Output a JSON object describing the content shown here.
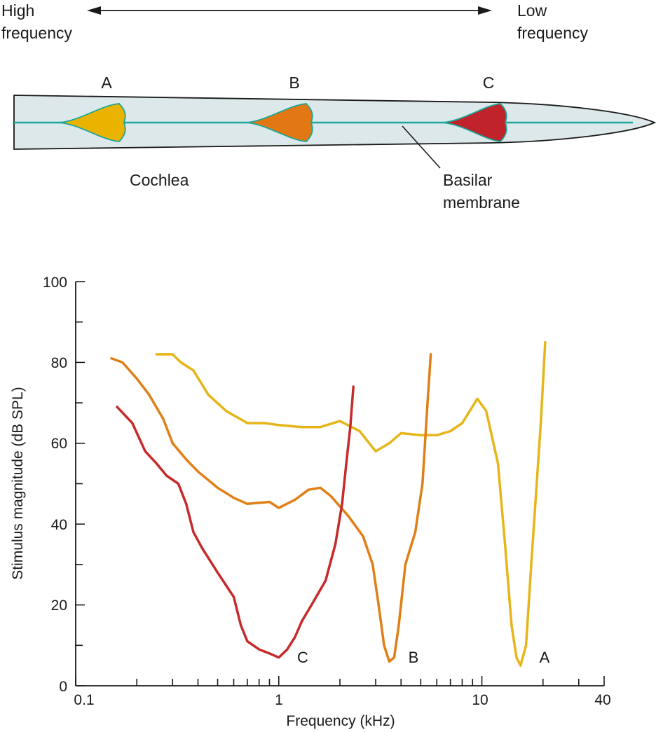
{
  "diagram": {
    "high_label_line1": "High",
    "high_label_line2": "frequency",
    "low_label_line1": "Low",
    "low_label_line2": "frequency",
    "cochlea_label": "Cochlea",
    "basilar_label_line1": "Basilar",
    "basilar_label_line2": "membrane",
    "colors": {
      "cochlea_fill": "#dce8ea",
      "membrane": "#1aa69a"
    },
    "bulges": [
      {
        "letter": "A",
        "color": "#e9b300"
      },
      {
        "letter": "B",
        "color": "#e27813"
      },
      {
        "letter": "C",
        "color": "#c0242a"
      }
    ]
  },
  "chart_data": {
    "type": "line",
    "xlabel": "Frequency (kHz)",
    "ylabel": "Stimulus magnitude (dB SPL)",
    "xscale": "log",
    "xlim": [
      0.1,
      40
    ],
    "ylim": [
      0,
      100
    ],
    "x_tick_labels": [
      "0.1",
      "1",
      "10",
      "40"
    ],
    "y_tick_labels": [
      "0",
      "20",
      "40",
      "60",
      "80",
      "100"
    ],
    "grid": false,
    "series": [
      {
        "name": "A",
        "color": "#e6b519",
        "points": [
          [
            0.25,
            82
          ],
          [
            0.3,
            82
          ],
          [
            0.33,
            80
          ],
          [
            0.38,
            78
          ],
          [
            0.45,
            72
          ],
          [
            0.55,
            68
          ],
          [
            0.7,
            65
          ],
          [
            0.85,
            65
          ],
          [
            1,
            64.5
          ],
          [
            1.3,
            64
          ],
          [
            1.6,
            64
          ],
          [
            2,
            65.5
          ],
          [
            2.5,
            63
          ],
          [
            3,
            58
          ],
          [
            3.5,
            60
          ],
          [
            4,
            62.5
          ],
          [
            5,
            62
          ],
          [
            6,
            62
          ],
          [
            7,
            63
          ],
          [
            8,
            65
          ],
          [
            9.5,
            71
          ],
          [
            10.5,
            68
          ],
          [
            12,
            55
          ],
          [
            13,
            35
          ],
          [
            14,
            15
          ],
          [
            14.8,
            7
          ],
          [
            15.5,
            5
          ],
          [
            16.5,
            10
          ],
          [
            17.5,
            30
          ],
          [
            18.5,
            48
          ],
          [
            19.5,
            65
          ],
          [
            20.5,
            85
          ]
        ]
      },
      {
        "name": "B",
        "color": "#e07f15",
        "points": [
          [
            0.15,
            81
          ],
          [
            0.17,
            80
          ],
          [
            0.2,
            76
          ],
          [
            0.23,
            72
          ],
          [
            0.27,
            66
          ],
          [
            0.3,
            60
          ],
          [
            0.35,
            56
          ],
          [
            0.4,
            53
          ],
          [
            0.5,
            49
          ],
          [
            0.6,
            46.5
          ],
          [
            0.7,
            45
          ],
          [
            0.9,
            45.5
          ],
          [
            1,
            44
          ],
          [
            1.2,
            46
          ],
          [
            1.4,
            48.5
          ],
          [
            1.6,
            49
          ],
          [
            1.8,
            47
          ],
          [
            2.2,
            42
          ],
          [
            2.6,
            37
          ],
          [
            2.9,
            30
          ],
          [
            3.1,
            20
          ],
          [
            3.3,
            10
          ],
          [
            3.5,
            6
          ],
          [
            3.7,
            7
          ],
          [
            3.9,
            15
          ],
          [
            4.2,
            30
          ],
          [
            4.7,
            38
          ],
          [
            5.1,
            50
          ],
          [
            5.4,
            70
          ],
          [
            5.6,
            82
          ]
        ]
      },
      {
        "name": "C",
        "color": "#c62a2a",
        "points": [
          [
            0.16,
            69
          ],
          [
            0.19,
            65
          ],
          [
            0.22,
            58
          ],
          [
            0.25,
            55
          ],
          [
            0.28,
            52
          ],
          [
            0.32,
            50
          ],
          [
            0.35,
            45
          ],
          [
            0.38,
            38
          ],
          [
            0.42,
            34
          ],
          [
            0.5,
            28
          ],
          [
            0.6,
            22
          ],
          [
            0.65,
            15
          ],
          [
            0.7,
            11
          ],
          [
            0.8,
            9
          ],
          [
            0.9,
            8
          ],
          [
            1,
            7
          ],
          [
            1.1,
            9
          ],
          [
            1.2,
            12
          ],
          [
            1.3,
            16
          ],
          [
            1.45,
            20
          ],
          [
            1.7,
            26
          ],
          [
            1.9,
            35
          ],
          [
            2.05,
            45
          ],
          [
            2.15,
            55
          ],
          [
            2.25,
            64
          ],
          [
            2.33,
            74
          ]
        ]
      }
    ]
  }
}
